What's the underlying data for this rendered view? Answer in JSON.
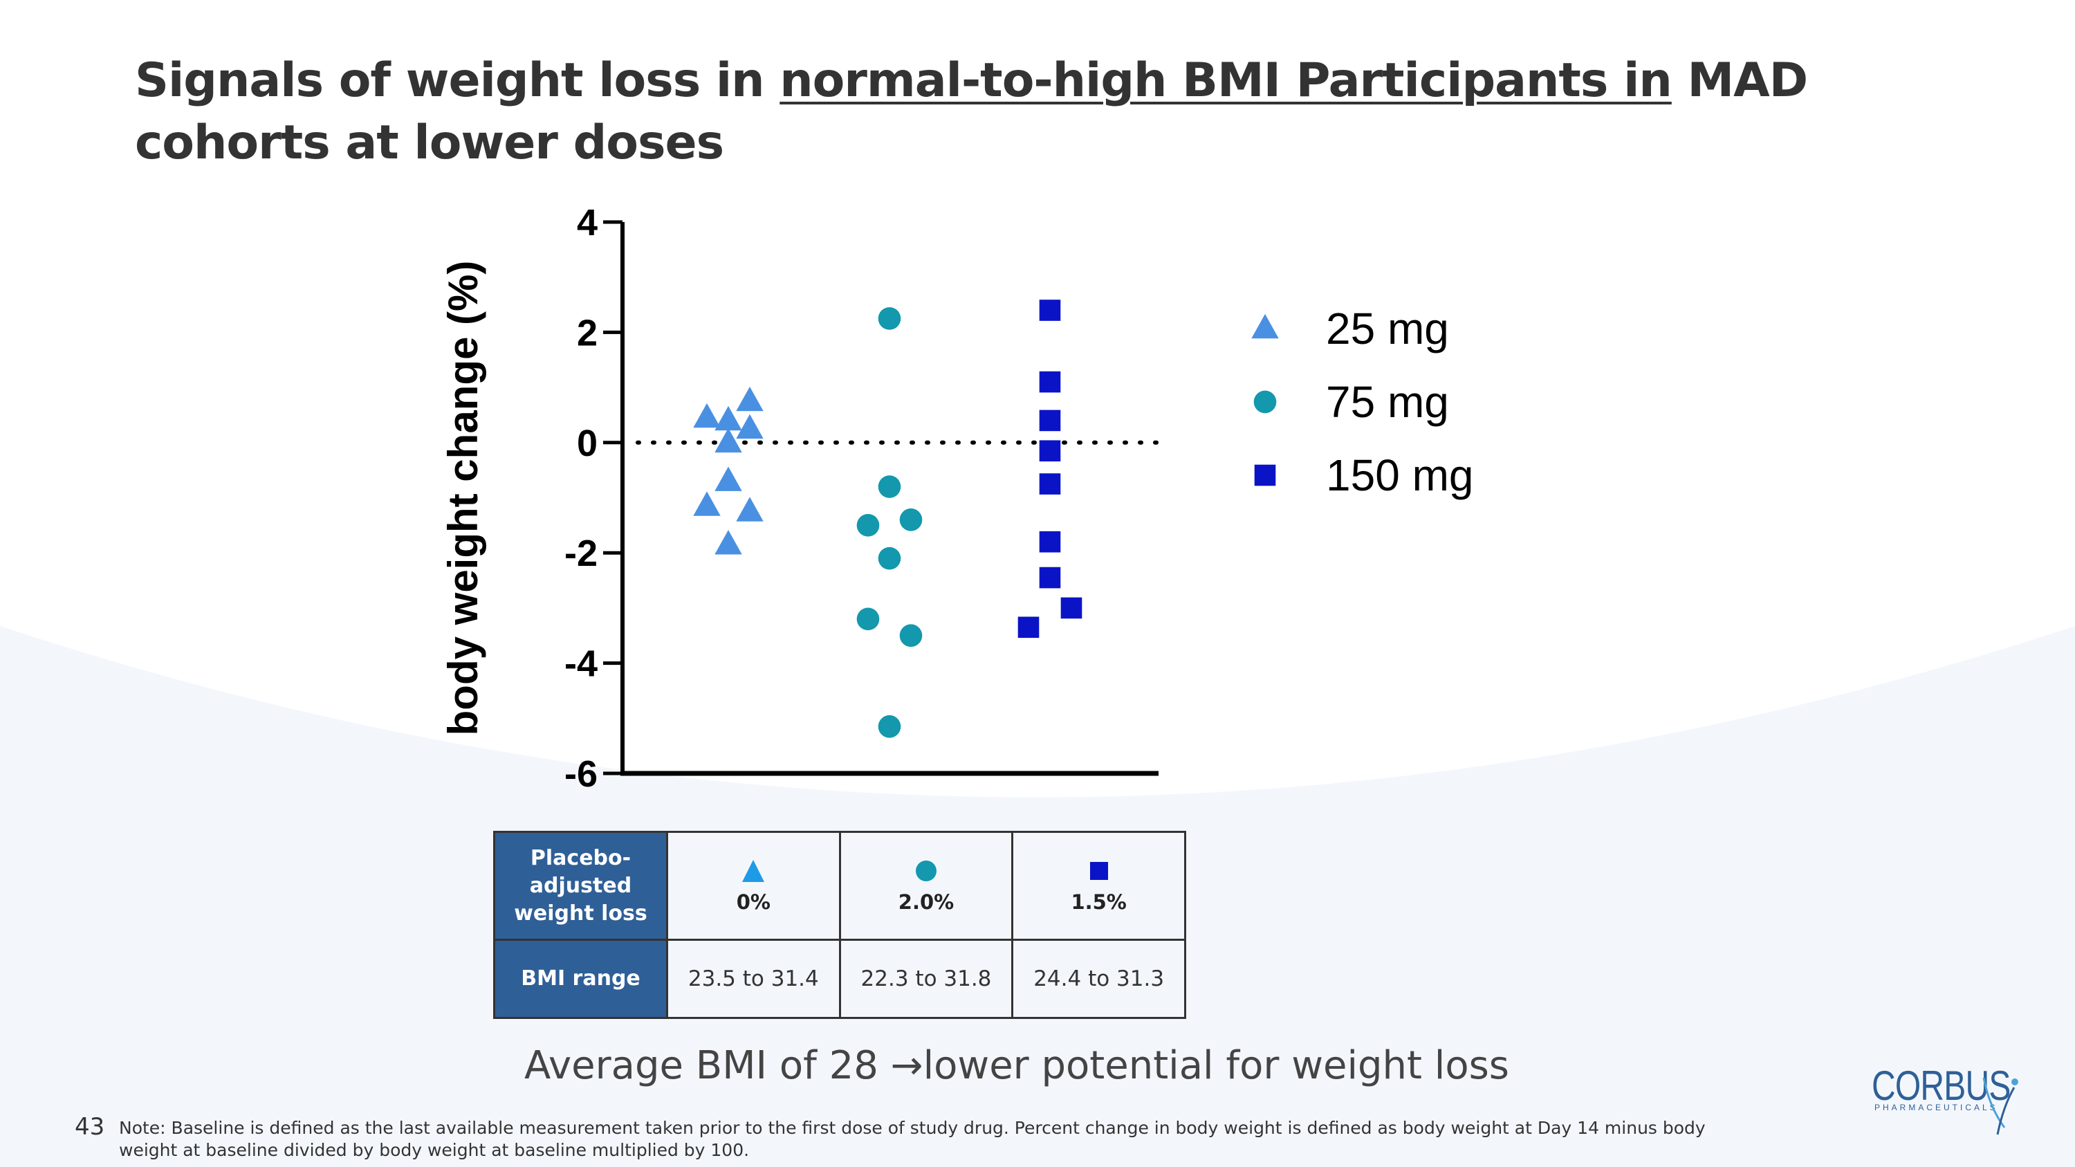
{
  "title": {
    "part1": "Signals of weight loss in ",
    "underlined": "normal-to-high BMI Participants in",
    "part2": " MAD cohorts at lower doses"
  },
  "chart_data": {
    "type": "scatter",
    "ylabel": "body weight change (%)",
    "xlabel": "",
    "ylim": [
      -6,
      4
    ],
    "yticks": [
      4,
      2,
      0,
      -2,
      -4,
      -6
    ],
    "ytick_labels": [
      "4",
      "2",
      "0",
      "-2",
      "-4",
      "-6"
    ],
    "reference_line": {
      "y": 0,
      "style": "dotted"
    },
    "legend_position": "right",
    "series": [
      {
        "name": "25 mg",
        "marker": "triangle",
        "color": "#4a90e2",
        "points": [
          {
            "group": 0,
            "offset": -1,
            "y": 0.45
          },
          {
            "group": 0,
            "offset": 0,
            "y": 0.4
          },
          {
            "group": 0,
            "offset": 1,
            "y": 0.75
          },
          {
            "group": 0,
            "offset": 1,
            "y": 0.25
          },
          {
            "group": 0,
            "offset": 0,
            "y": 0.0
          },
          {
            "group": 0,
            "offset": 0,
            "y": -0.7
          },
          {
            "group": 0,
            "offset": -1,
            "y": -1.15
          },
          {
            "group": 0,
            "offset": 1,
            "y": -1.25
          },
          {
            "group": 0,
            "offset": 0,
            "y": -1.85
          }
        ]
      },
      {
        "name": "75 mg",
        "marker": "circle",
        "color": "#1398ad",
        "points": [
          {
            "group": 1,
            "offset": 0,
            "y": 2.25
          },
          {
            "group": 1,
            "offset": 0,
            "y": -0.8
          },
          {
            "group": 1,
            "offset": 1,
            "y": -1.4
          },
          {
            "group": 1,
            "offset": -1,
            "y": -1.5
          },
          {
            "group": 1,
            "offset": 0,
            "y": -2.1
          },
          {
            "group": 1,
            "offset": -1,
            "y": -3.2
          },
          {
            "group": 1,
            "offset": 1,
            "y": -3.5
          },
          {
            "group": 1,
            "offset": 0,
            "y": -5.15
          }
        ]
      },
      {
        "name": "150 mg",
        "marker": "square",
        "color": "#0a14c6",
        "points": [
          {
            "group": 2,
            "offset": 0,
            "y": 2.4
          },
          {
            "group": 2,
            "offset": 0,
            "y": 1.1
          },
          {
            "group": 2,
            "offset": 0,
            "y": 0.4
          },
          {
            "group": 2,
            "offset": 0,
            "y": -0.15
          },
          {
            "group": 2,
            "offset": 0,
            "y": -0.75
          },
          {
            "group": 2,
            "offset": 0,
            "y": -1.8
          },
          {
            "group": 2,
            "offset": 0,
            "y": -2.45
          },
          {
            "group": 2,
            "offset": 1,
            "y": -3.0
          },
          {
            "group": 2,
            "offset": -1,
            "y": -3.35
          }
        ]
      }
    ]
  },
  "table": {
    "row1_header": "Placebo-adjusted weight loss",
    "row2_header": "BMI range",
    "columns": [
      {
        "marker": "triangle",
        "color": "#1e9be6",
        "loss": "0%",
        "bmi": "23.5 to 31.4"
      },
      {
        "marker": "circle",
        "color": "#1398ad",
        "loss": "2.0%",
        "bmi": "22.3 to 31.8"
      },
      {
        "marker": "square",
        "color": "#0a14c6",
        "loss": "1.5%",
        "bmi": "24.4 to 31.3"
      }
    ]
  },
  "takeaway": "Average BMI of 28 →lower potential for weight loss",
  "page_number": "43",
  "footnote": "Note: Baseline is defined as the last available measurement taken prior to the first dose of study drug. Percent change in body weight is defined as body weight at Day 14 minus body weight at baseline divided by body weight at baseline multiplied by 100.",
  "logo": {
    "name": "CORBUS",
    "sub": "PHARMACEUTICALS"
  },
  "colors": {
    "header_bg": "#2f5f97",
    "wave": "#f3f7fc",
    "title": "#333333"
  }
}
